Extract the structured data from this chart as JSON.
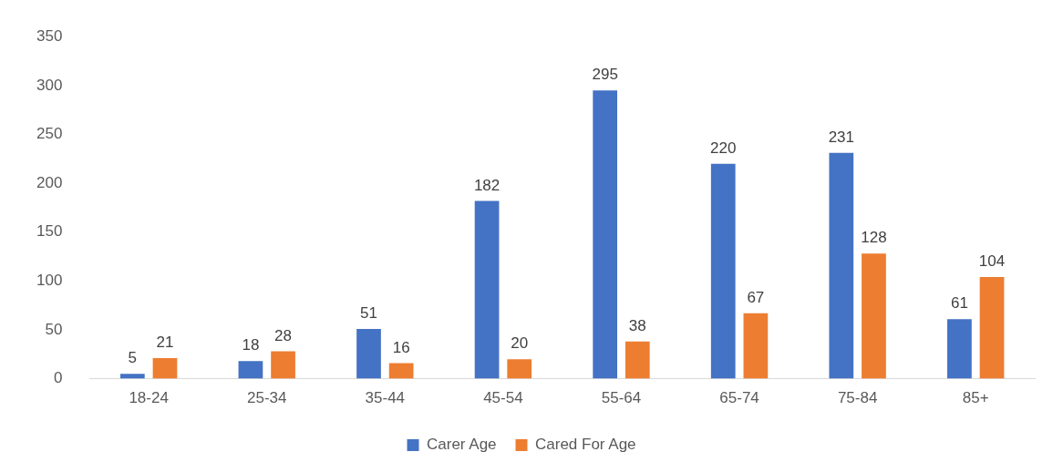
{
  "chart_data": {
    "type": "bar",
    "categories": [
      "18-24",
      "25-34",
      "35-44",
      "45-54",
      "55-64",
      "65-74",
      "75-84",
      "85+"
    ],
    "series": [
      {
        "name": "Carer Age",
        "color": "#4472c4",
        "values": [
          5,
          18,
          51,
          182,
          295,
          220,
          231,
          61
        ]
      },
      {
        "name": "Cared For Age",
        "color": "#ed7d31",
        "values": [
          21,
          28,
          16,
          20,
          38,
          67,
          128,
          104
        ]
      }
    ],
    "ylim": [
      0,
      350
    ],
    "yticks": [
      0,
      50,
      100,
      150,
      200,
      250,
      300,
      350
    ],
    "grid": false,
    "legend": "bottom",
    "data_labels": true
  }
}
